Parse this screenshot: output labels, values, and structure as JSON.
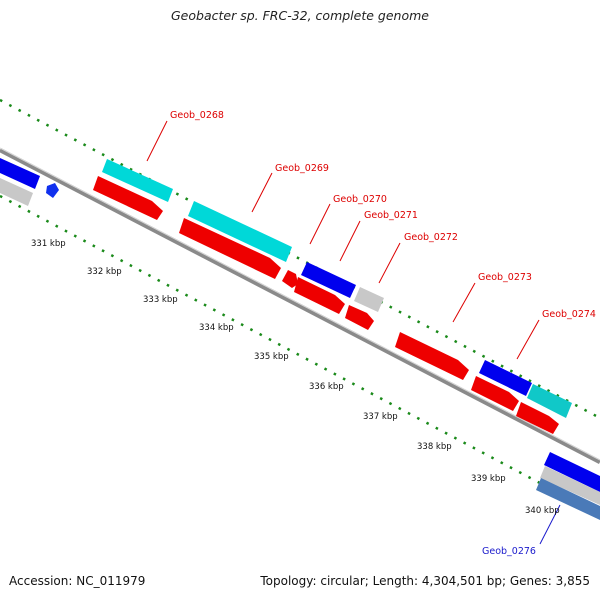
{
  "title": "Geobacter sp. FRC-32, complete genome",
  "footer": {
    "accession": "Accession: NC_011979",
    "topology": "Topology: circular; Length: 4,304,501 bp; Genes: 3,855"
  },
  "scale_labels": [
    "331 kbp",
    "332 kbp",
    "333 kbp",
    "334 kbp",
    "335 kbp",
    "336 kbp",
    "337 kbp",
    "338 kbp",
    "339 kbp",
    "340 kbp"
  ],
  "gene_labels": [
    {
      "name": "Geob_0268",
      "color": "#dd0000"
    },
    {
      "name": "Geob_0269",
      "color": "#dd0000"
    },
    {
      "name": "Geob_0270",
      "color": "#dd0000"
    },
    {
      "name": "Geob_0271",
      "color": "#dd0000"
    },
    {
      "name": "Geob_0272",
      "color": "#dd0000"
    },
    {
      "name": "Geob_0273",
      "color": "#dd0000"
    },
    {
      "name": "Geob_0274",
      "color": "#dd0000"
    },
    {
      "name": "Geob_0276",
      "color": "#1a1acc"
    }
  ],
  "colors": {
    "cds_forward": "#0000ff",
    "cds_reverse": "#ee0000",
    "rna": "#00d8d8",
    "other": "#c8c8c8",
    "backbone": "#888888",
    "ticks": "#1a8a1a"
  }
}
